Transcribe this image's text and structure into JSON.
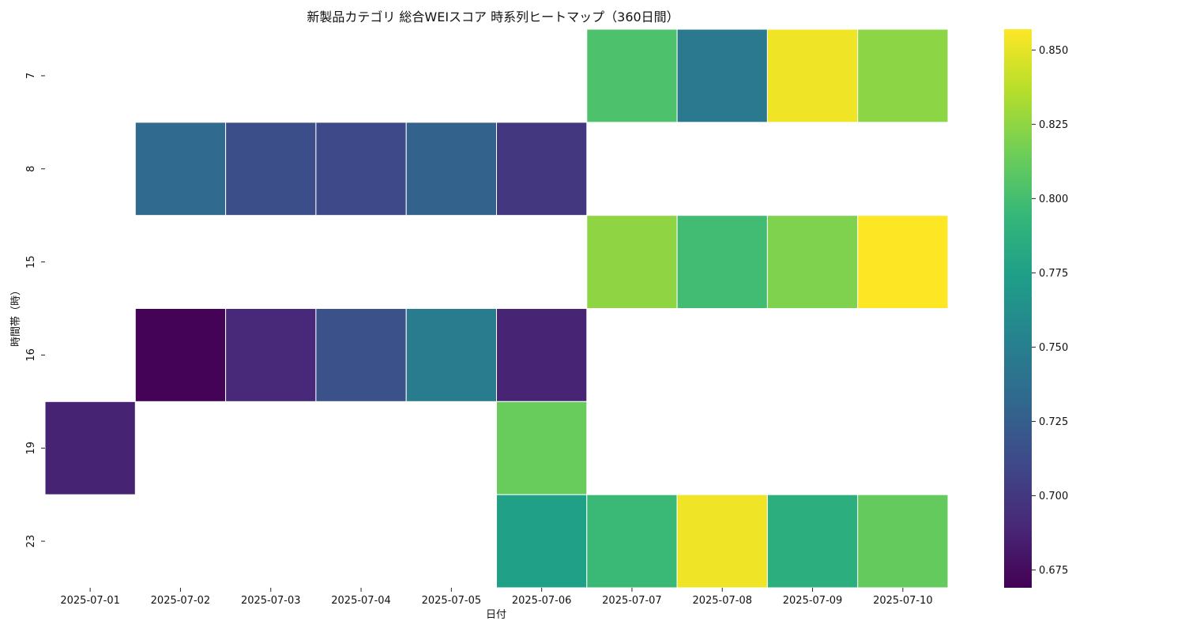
{
  "chart_data": {
    "type": "heatmap",
    "title": "新製品カテゴリ 総合WEIスコア 時系列ヒートマップ（360日間）",
    "xlabel": "日付",
    "ylabel": "時間帯（時）",
    "x": [
      "2025-07-01",
      "2025-07-02",
      "2025-07-03",
      "2025-07-04",
      "2025-07-05",
      "2025-07-06",
      "2025-07-07",
      "2025-07-08",
      "2025-07-09",
      "2025-07-10"
    ],
    "y": [
      "7",
      "8",
      "15",
      "16",
      "19",
      "23"
    ],
    "values": [
      [
        null,
        null,
        null,
        null,
        null,
        null,
        0.803,
        0.745,
        0.853,
        0.824
      ],
      [
        null,
        0.733,
        0.714,
        0.711,
        0.728,
        0.7,
        null,
        null,
        null,
        null
      ],
      [
        null,
        null,
        null,
        null,
        null,
        null,
        0.825,
        0.799,
        0.82,
        0.857
      ],
      [
        null,
        0.67,
        0.69,
        0.716,
        0.748,
        0.688,
        null,
        null,
        null,
        null
      ],
      [
        0.687,
        null,
        null,
        null,
        null,
        0.813,
        null,
        null,
        null,
        null
      ],
      [
        null,
        null,
        null,
        null,
        null,
        0.775,
        0.796,
        0.853,
        0.787,
        0.812
      ]
    ],
    "colorbar": {
      "colormap": "viridis",
      "vmin": 0.669,
      "vmax": 0.857,
      "ticks": [
        "0.675",
        "0.700",
        "0.725",
        "0.750",
        "0.775",
        "0.800",
        "0.825",
        "0.850"
      ]
    },
    "grid": false
  }
}
